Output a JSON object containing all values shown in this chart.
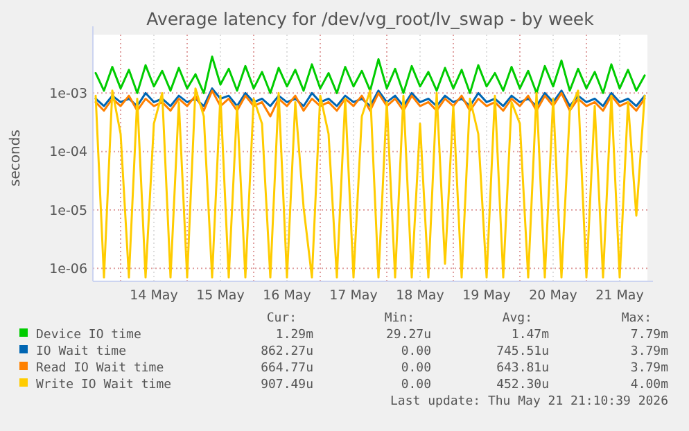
{
  "chart_data": {
    "type": "line",
    "title": "Average latency for /dev/vg_root/lv_swap - by week",
    "ylabel": "seconds",
    "log": "y",
    "grid": true,
    "legend": "bottom",
    "marker": "none",
    "line_style": "solid",
    "xlim": [
      "2026-05-13T14:00",
      "2026-05-21T22:00"
    ],
    "xticks": [
      {
        "value": "2026-05-14T00:00",
        "label": null
      },
      {
        "value": "2026-05-14T12:00",
        "label": "14 May"
      },
      {
        "value": "2026-05-15T00:00",
        "label": null
      },
      {
        "value": "2026-05-15T12:00",
        "label": "15 May"
      },
      {
        "value": "2026-05-16T00:00",
        "label": null
      },
      {
        "value": "2026-05-16T12:00",
        "label": "16 May"
      },
      {
        "value": "2026-05-17T00:00",
        "label": null
      },
      {
        "value": "2026-05-17T12:00",
        "label": "17 May"
      },
      {
        "value": "2026-05-18T00:00",
        "label": null
      },
      {
        "value": "2026-05-18T12:00",
        "label": "18 May"
      },
      {
        "value": "2026-05-19T00:00",
        "label": null
      },
      {
        "value": "2026-05-19T12:00",
        "label": "19 May"
      },
      {
        "value": "2026-05-20T00:00",
        "label": null
      },
      {
        "value": "2026-05-20T12:00",
        "label": "20 May"
      },
      {
        "value": "2026-05-21T00:00",
        "label": null
      },
      {
        "value": "2026-05-21T12:00",
        "label": "21 May"
      }
    ],
    "ylim": [
      6e-07,
      0.01
    ],
    "yticks": [
      {
        "value": 1e-06,
        "label": "1e-06"
      },
      {
        "value": 1e-05,
        "label": "1e-05"
      },
      {
        "value": 0.0001,
        "label": "1e-04"
      },
      {
        "value": 0.001,
        "label": "1e-03"
      }
    ],
    "x": [
      "2026-05-13T15:00",
      "2026-05-13T18:00",
      "2026-05-13T21:00",
      "2026-05-14T00:00",
      "2026-05-14T03:00",
      "2026-05-14T06:00",
      "2026-05-14T09:00",
      "2026-05-14T12:00",
      "2026-05-14T15:00",
      "2026-05-14T18:00",
      "2026-05-14T21:00",
      "2026-05-15T00:00",
      "2026-05-15T03:00",
      "2026-05-15T06:00",
      "2026-05-15T09:00",
      "2026-05-15T12:00",
      "2026-05-15T15:00",
      "2026-05-15T18:00",
      "2026-05-15T21:00",
      "2026-05-16T00:00",
      "2026-05-16T03:00",
      "2026-05-16T06:00",
      "2026-05-16T09:00",
      "2026-05-16T12:00",
      "2026-05-16T15:00",
      "2026-05-16T18:00",
      "2026-05-16T21:00",
      "2026-05-17T00:00",
      "2026-05-17T03:00",
      "2026-05-17T06:00",
      "2026-05-17T09:00",
      "2026-05-17T12:00",
      "2026-05-17T15:00",
      "2026-05-17T18:00",
      "2026-05-17T21:00",
      "2026-05-18T00:00",
      "2026-05-18T03:00",
      "2026-05-18T06:00",
      "2026-05-18T09:00",
      "2026-05-18T12:00",
      "2026-05-18T15:00",
      "2026-05-18T18:00",
      "2026-05-18T21:00",
      "2026-05-19T00:00",
      "2026-05-19T03:00",
      "2026-05-19T06:00",
      "2026-05-19T09:00",
      "2026-05-19T12:00",
      "2026-05-19T15:00",
      "2026-05-19T18:00",
      "2026-05-19T21:00",
      "2026-05-20T00:00",
      "2026-05-20T03:00",
      "2026-05-20T06:00",
      "2026-05-20T09:00",
      "2026-05-20T12:00",
      "2026-05-20T15:00",
      "2026-05-20T18:00",
      "2026-05-20T21:00",
      "2026-05-21T00:00",
      "2026-05-21T03:00",
      "2026-05-21T06:00",
      "2026-05-21T09:00",
      "2026-05-21T12:00",
      "2026-05-21T15:00",
      "2026-05-21T18:00",
      "2026-05-21T21:00"
    ],
    "series": [
      {
        "name": "Device IO time",
        "color": "#00cc00",
        "values": [
          0.0022,
          0.0011,
          0.0028,
          0.0012,
          0.0025,
          0.001,
          0.003,
          0.0013,
          0.0024,
          0.0011,
          0.0027,
          0.0012,
          0.0021,
          0.001,
          0.0042,
          0.0014,
          0.0026,
          0.0011,
          0.0029,
          0.0012,
          0.0023,
          0.001,
          0.0027,
          0.0013,
          0.0025,
          0.0011,
          0.0031,
          0.0012,
          0.0022,
          0.001,
          0.0028,
          0.0013,
          0.0024,
          0.0011,
          0.0038,
          0.0012,
          0.0026,
          0.001,
          0.0029,
          0.0013,
          0.0023,
          0.0011,
          0.0027,
          0.0012,
          0.0025,
          0.001,
          0.003,
          0.0013,
          0.0022,
          0.0011,
          0.0028,
          0.0012,
          0.0024,
          0.001,
          0.0029,
          0.0013,
          0.0036,
          0.0011,
          0.0026,
          0.0012,
          0.0023,
          0.001,
          0.0031,
          0.0012,
          0.0025,
          0.0011,
          0.002
        ]
      },
      {
        "name": "IO Wait time",
        "color": "#0066b3",
        "values": [
          0.0008,
          0.0006,
          0.0009,
          0.0007,
          0.0008,
          0.0006,
          0.001,
          0.0007,
          0.0008,
          0.0006,
          0.0009,
          0.0007,
          0.0008,
          0.0006,
          0.0012,
          0.0008,
          0.0009,
          0.0006,
          0.001,
          0.0007,
          0.0008,
          0.0006,
          0.0009,
          0.0007,
          0.0008,
          0.0006,
          0.001,
          0.0007,
          0.0008,
          0.0006,
          0.0009,
          0.0007,
          0.0008,
          0.0006,
          0.0011,
          0.0007,
          0.0009,
          0.0006,
          0.001,
          0.0007,
          0.0008,
          0.0006,
          0.0009,
          0.0007,
          0.0008,
          0.0006,
          0.001,
          0.0007,
          0.0008,
          0.0006,
          0.0009,
          0.0007,
          0.0008,
          0.0006,
          0.001,
          0.0007,
          0.0011,
          0.0006,
          0.0009,
          0.0007,
          0.0008,
          0.0006,
          0.001,
          0.0007,
          0.0008,
          0.0006,
          0.0009
        ]
      },
      {
        "name": "Read IO Wait time",
        "color": "#ff8000",
        "values": [
          0.0007,
          0.0005,
          0.0008,
          0.0006,
          0.0009,
          0.0005,
          0.0008,
          0.0006,
          0.0007,
          0.0005,
          0.0008,
          0.0006,
          0.0009,
          0.0005,
          0.0011,
          0.0006,
          0.0008,
          0.0005,
          0.0009,
          0.0006,
          0.0007,
          0.0004,
          0.0008,
          0.0006,
          0.0009,
          0.0005,
          0.0008,
          0.0006,
          0.0007,
          0.0005,
          0.0008,
          0.0006,
          0.0009,
          0.0005,
          0.001,
          0.0006,
          0.0008,
          0.0005,
          0.0009,
          0.0006,
          0.0007,
          0.0005,
          0.0008,
          0.0006,
          0.0009,
          0.0005,
          0.0008,
          0.0006,
          0.0007,
          0.0005,
          0.0008,
          0.0006,
          0.0009,
          0.0005,
          0.0009,
          0.0006,
          0.001,
          0.0005,
          0.0008,
          0.0006,
          0.0007,
          0.0005,
          0.0009,
          0.0006,
          0.0007,
          0.0005,
          0.0008
        ]
      },
      {
        "name": "Write IO Wait time",
        "color": "#ffcc00",
        "values": [
          0.0009,
          7e-07,
          0.0011,
          0.0002,
          7e-07,
          0.0008,
          7e-07,
          0.0003,
          0.001,
          7e-07,
          0.0007,
          7e-07,
          0.0012,
          0.0004,
          7e-07,
          0.0009,
          7e-07,
          0.0006,
          7e-07,
          0.0008,
          0.0003,
          7e-07,
          0.001,
          7e-07,
          0.0007,
          1.1e-05,
          7e-07,
          0.0009,
          0.0002,
          7e-07,
          0.0008,
          7e-07,
          0.0004,
          0.0011,
          7e-07,
          0.0007,
          7e-07,
          0.0009,
          7e-07,
          0.0003,
          7e-07,
          0.001,
          1.2e-06,
          0.0006,
          7e-07,
          0.0008,
          0.0002,
          7e-07,
          0.0009,
          7e-07,
          0.0007,
          0.0003,
          7e-07,
          0.001,
          7e-07,
          0.0008,
          7e-07,
          0.0005,
          0.0011,
          7e-07,
          0.0006,
          7e-07,
          0.0009,
          7e-07,
          0.0007,
          8e-06,
          0.0009
        ]
      }
    ],
    "annotations": [
      "Cur:",
      "Min:",
      "Avg:",
      "Max:",
      "1.29m",
      "29.27u",
      "1.47m",
      "7.79m",
      "862.27u",
      "0.00",
      "745.51u",
      "3.79m",
      "664.77u",
      "0.00",
      "643.81u",
      "3.79m",
      "907.49u",
      "0.00",
      "452.30u",
      "4.00m",
      "Last update: Thu May 21 21:10:39 2026"
    ]
  }
}
